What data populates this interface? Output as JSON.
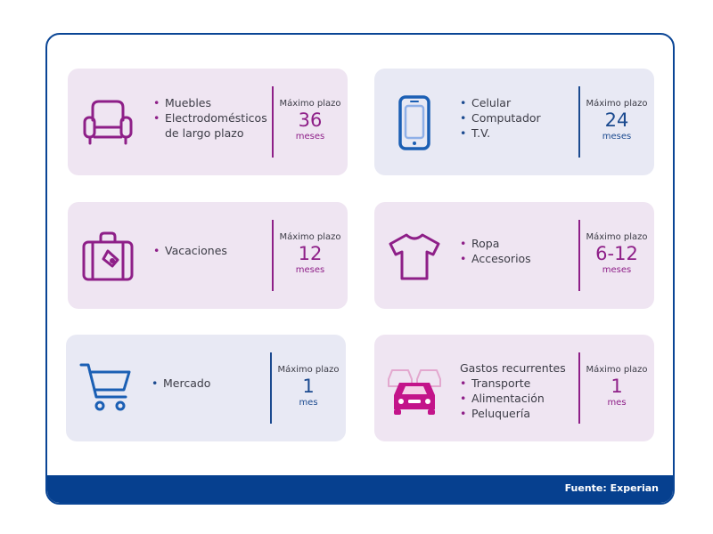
{
  "cards": [
    {
      "items": [
        "Muebles",
        "Electrodomésticos",
        "de largo plazo"
      ],
      "label": "Máximo plazo",
      "value": "36",
      "unit": "meses",
      "icon": "armchair-icon",
      "accent": "#8e1f88"
    },
    {
      "items": [
        "Celular",
        "Computador",
        "T.V."
      ],
      "label": "Máximo plazo",
      "value": "24",
      "unit": "meses",
      "icon": "smartphone-icon",
      "accent": "#1b4a8f"
    },
    {
      "items": [
        "Vacaciones"
      ],
      "label": "Máximo plazo",
      "value": "12",
      "unit": "meses",
      "icon": "suitcase-icon",
      "accent": "#8e1f88"
    },
    {
      "items": [
        "Ropa",
        "Accesorios"
      ],
      "label": "Máximo plazo",
      "value": "6-12",
      "unit": "meses",
      "icon": "tshirt-icon",
      "accent": "#8e1f88"
    },
    {
      "items": [
        "Mercado"
      ],
      "label": "Máximo plazo",
      "value": "1",
      "unit": "mes",
      "icon": "shopping-cart-icon",
      "accent": "#1b4a8f"
    },
    {
      "heading": "Gastos recurrentes",
      "items": [
        "Transporte",
        "Alimentación",
        "Peluquería"
      ],
      "label": "Máximo plazo",
      "value": "1",
      "unit": "mes",
      "icon": "cars-icon",
      "accent": "#8e1f88"
    }
  ],
  "bullet": "•",
  "footer": {
    "source": "Fuente: Experian"
  }
}
